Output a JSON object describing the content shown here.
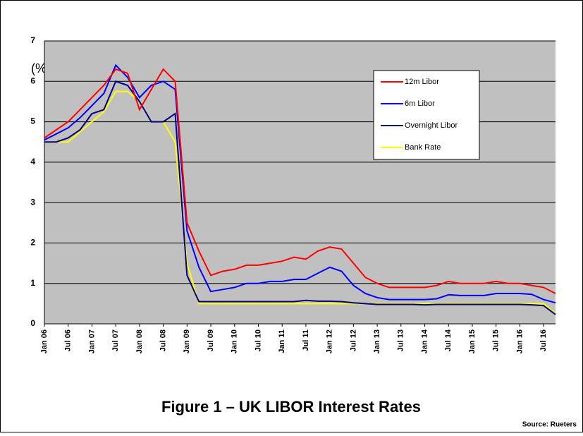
{
  "chart_data": {
    "type": "line",
    "title": "Figure 1 – UK LIBOR Interest Rates",
    "source": "Source: Rueters",
    "y_label": "(%)",
    "categories": [
      "Jan 06",
      null,
      "Jul 06",
      null,
      "Jan 07",
      null,
      "Jul 07",
      null,
      "Jan 08",
      null,
      "Jul 08",
      null,
      "Jan 09",
      null,
      "Jul 09",
      null,
      "Jan 10",
      null,
      "Jul 10",
      null,
      "Jan 11",
      null,
      "Jul 11",
      null,
      "Jan 12",
      null,
      "Jul 12",
      null,
      "Jan 13",
      null,
      "Jul 13",
      null,
      "Jan 14",
      null,
      "Jul 14",
      null,
      "Jan 15",
      null,
      "Jul 15",
      null,
      "Jan 16",
      null,
      "Jul 16",
      null
    ],
    "series": [
      {
        "name": "12m Libor",
        "color": "#ff0000",
        "values": [
          4.6,
          4.8,
          5.0,
          5.3,
          5.6,
          5.9,
          6.3,
          6.2,
          5.3,
          5.8,
          6.3,
          6.0,
          2.5,
          1.8,
          1.2,
          1.3,
          1.35,
          1.45,
          1.45,
          1.5,
          1.55,
          1.65,
          1.6,
          1.8,
          1.9,
          1.85,
          1.5,
          1.15,
          1.0,
          0.9,
          0.9,
          0.9,
          0.9,
          0.95,
          1.05,
          1.0,
          1.0,
          1.0,
          1.05,
          1.0,
          1.0,
          0.95,
          0.9,
          0.75
        ]
      },
      {
        "name": "6m Libor",
        "color": "#0000ff",
        "values": [
          4.55,
          4.7,
          4.85,
          5.1,
          5.4,
          5.7,
          6.4,
          6.1,
          5.6,
          5.9,
          6.0,
          5.8,
          2.3,
          1.4,
          0.8,
          0.85,
          0.9,
          1.0,
          1.0,
          1.05,
          1.05,
          1.1,
          1.1,
          1.25,
          1.4,
          1.3,
          0.95,
          0.75,
          0.65,
          0.6,
          0.6,
          0.6,
          0.6,
          0.62,
          0.72,
          0.7,
          0.7,
          0.7,
          0.75,
          0.75,
          0.75,
          0.73,
          0.6,
          0.52
        ]
      },
      {
        "name": "Overnight Libor",
        "color": "#000080",
        "values": [
          4.5,
          4.5,
          4.6,
          4.8,
          5.2,
          5.3,
          6.0,
          5.9,
          5.5,
          5.0,
          5.0,
          5.2,
          1.2,
          0.55,
          0.55,
          0.55,
          0.55,
          0.55,
          0.55,
          0.55,
          0.55,
          0.55,
          0.58,
          0.56,
          0.56,
          0.55,
          0.52,
          0.5,
          0.48,
          0.48,
          0.48,
          0.48,
          0.47,
          0.48,
          0.48,
          0.48,
          0.48,
          0.48,
          0.48,
          0.48,
          0.48,
          0.47,
          0.45,
          0.23
        ]
      },
      {
        "name": "Bank Rate",
        "color": "#ffff00",
        "values": [
          4.5,
          4.5,
          4.5,
          4.75,
          5.0,
          5.25,
          5.75,
          5.75,
          5.5,
          5.0,
          5.0,
          4.5,
          1.5,
          0.5,
          0.5,
          0.5,
          0.5,
          0.5,
          0.5,
          0.5,
          0.5,
          0.5,
          0.5,
          0.5,
          0.5,
          0.5,
          0.5,
          0.5,
          0.5,
          0.5,
          0.5,
          0.5,
          0.5,
          0.5,
          0.5,
          0.5,
          0.5,
          0.5,
          0.5,
          0.5,
          0.5,
          0.5,
          0.5,
          0.25
        ]
      }
    ],
    "ylim": [
      0,
      7
    ],
    "yticks": [
      0,
      1,
      2,
      3,
      4,
      5,
      6,
      7
    ],
    "grid": true,
    "legend": "upper right"
  }
}
